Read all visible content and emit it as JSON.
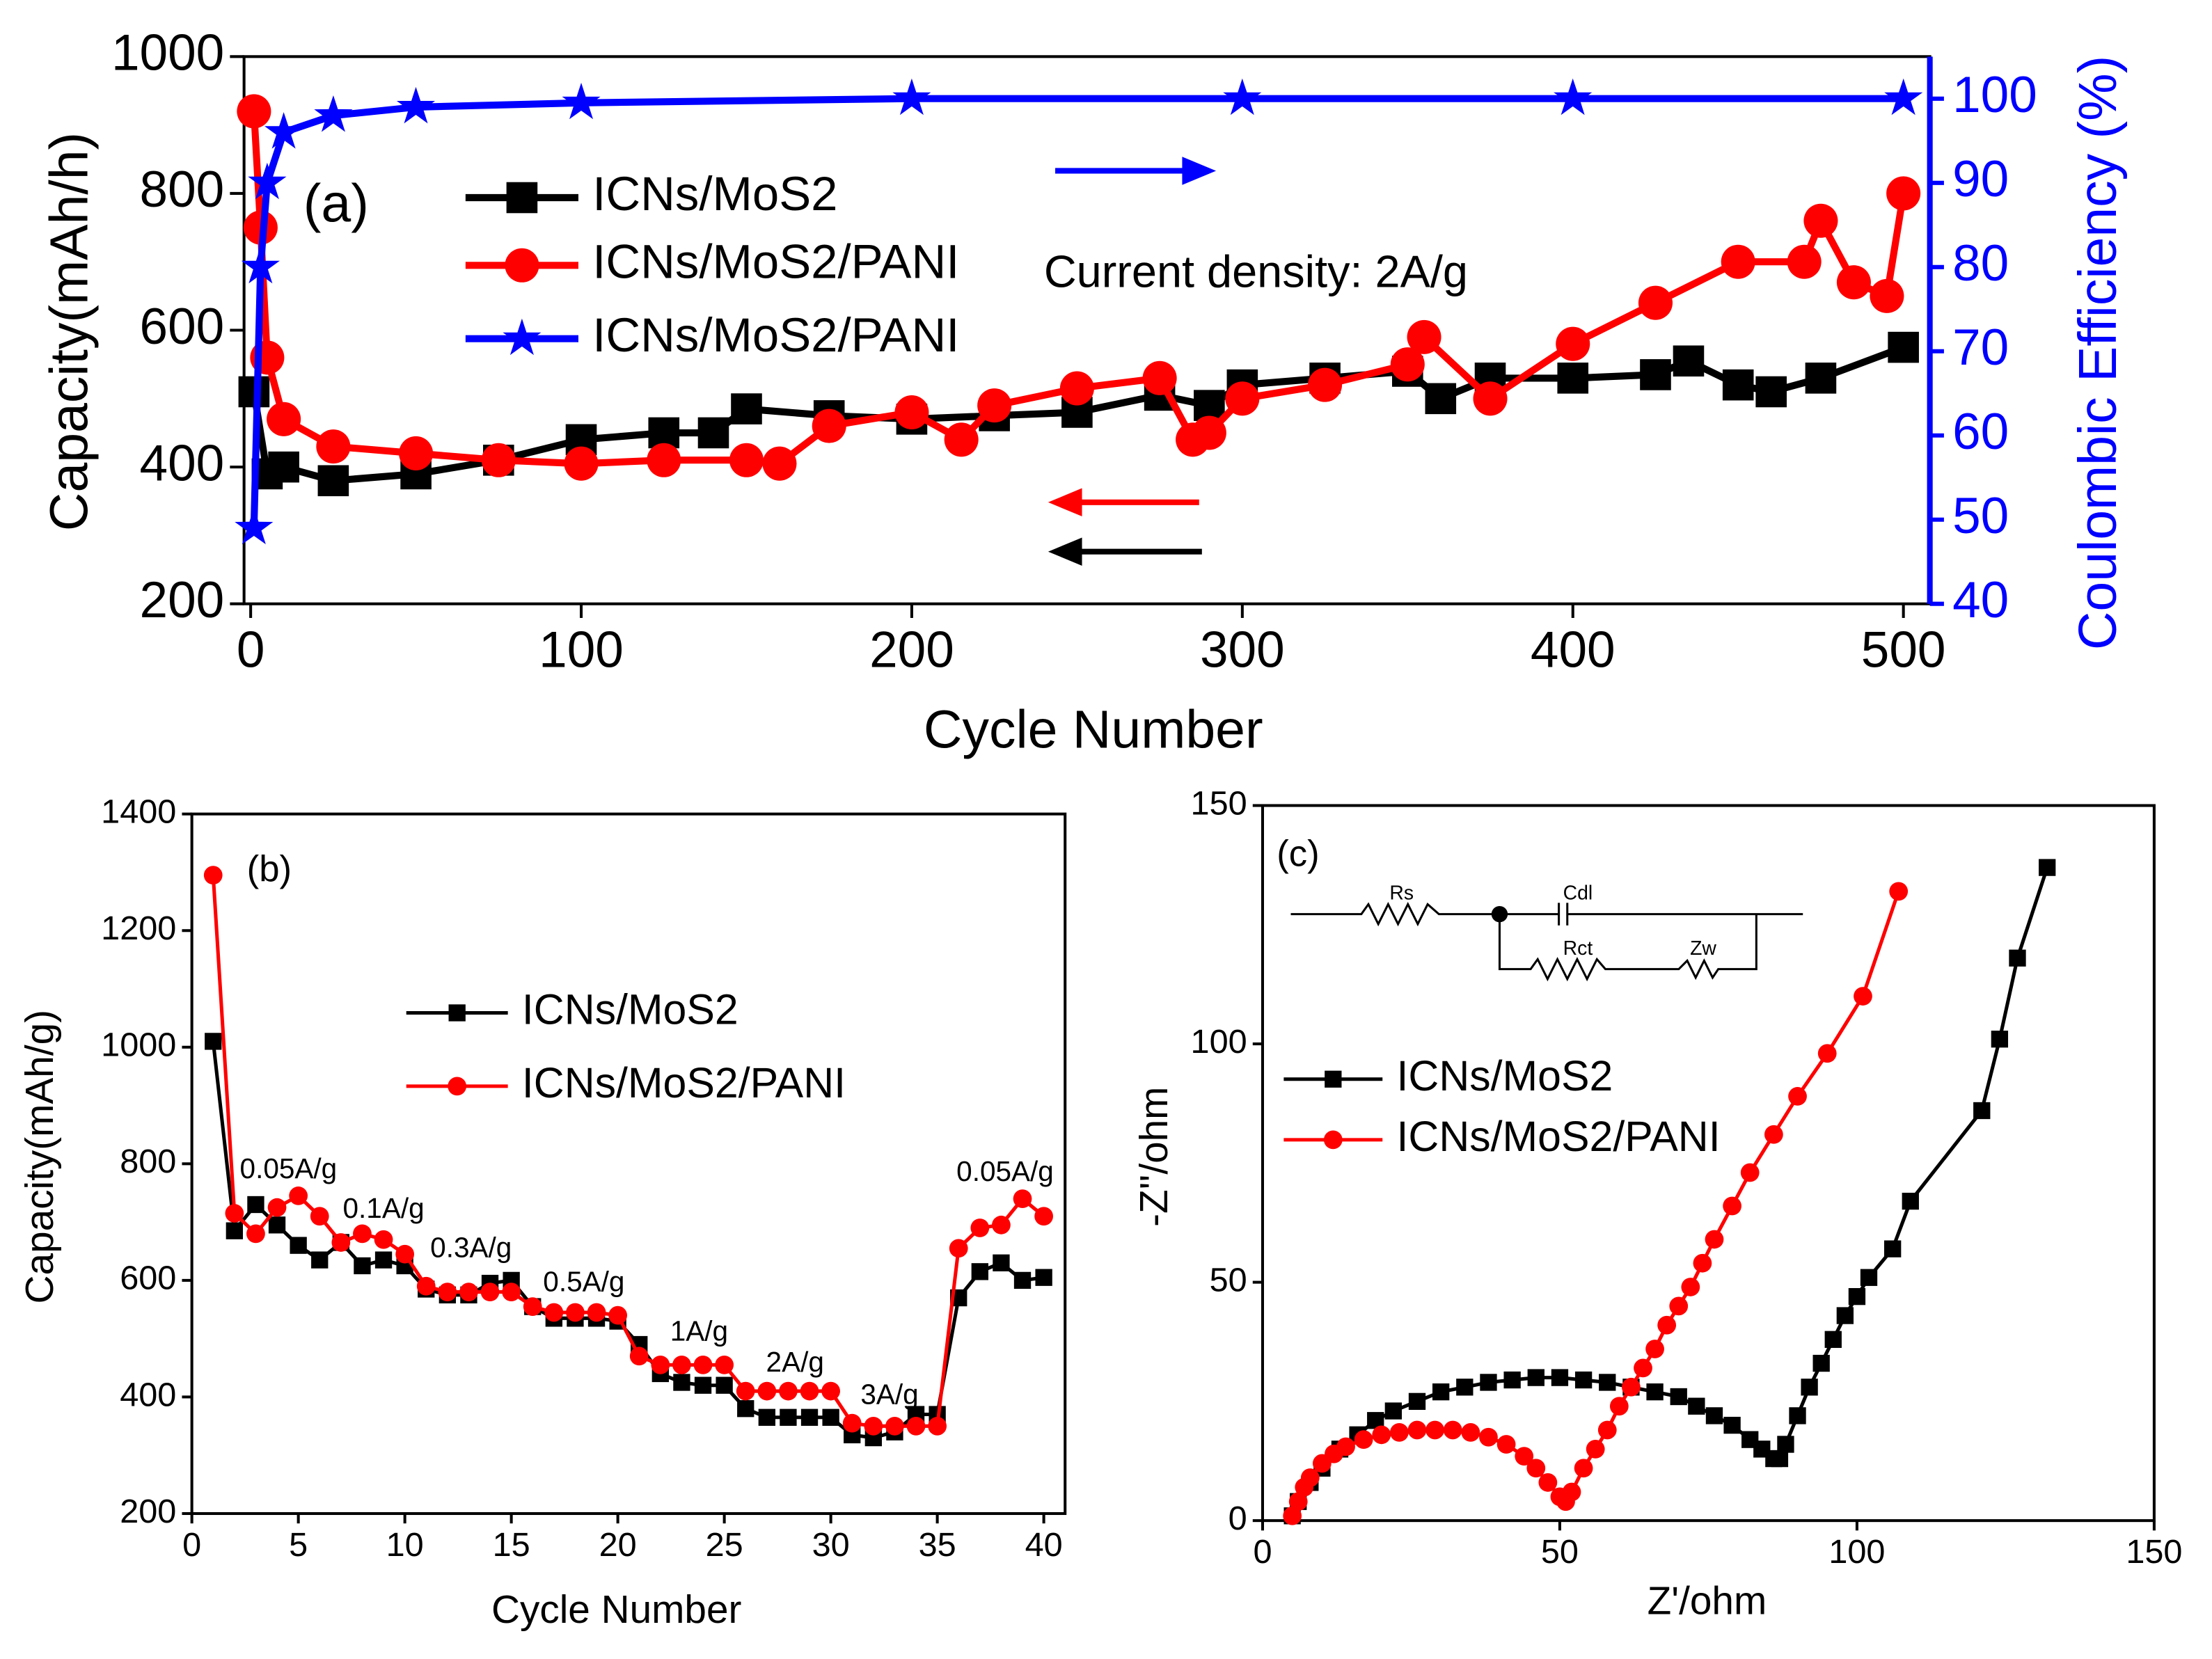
{
  "chart_data": [
    {
      "type": "line",
      "xlabel": "Cycle Number",
      "ylabel": "Capacity(mAh/h)",
      "y2label": "Coulombic Efficiency (%)",
      "xlim": [
        -2,
        508
      ],
      "xticks": [
        0,
        100,
        200,
        300,
        400,
        500
      ],
      "ylim": [
        200,
        1000
      ],
      "yticks": [
        200,
        400,
        600,
        800,
        1000
      ],
      "y2lim": [
        40,
        105
      ],
      "y2ticks": [
        40,
        50,
        60,
        70,
        80,
        90,
        100
      ],
      "annotations": [
        "(a)",
        "Current density: 2A/g"
      ],
      "series": [
        {
          "name": "ICNs/MoS2",
          "color": "#000000",
          "marker": "square",
          "x": [
            1,
            5,
            10,
            25,
            50,
            75,
            100,
            125,
            140,
            150,
            175,
            200,
            225,
            250,
            275,
            290,
            300,
            325,
            350,
            360,
            375,
            400,
            425,
            435,
            450,
            460,
            475,
            500
          ],
          "values": [
            510,
            390,
            400,
            380,
            390,
            410,
            440,
            450,
            450,
            485,
            475,
            470,
            475,
            480,
            505,
            490,
            520,
            530,
            540,
            500,
            530,
            530,
            535,
            555,
            520,
            510,
            530,
            575
          ]
        },
        {
          "name": "ICNs/MoS2/PANI",
          "color": "#ff0000",
          "marker": "circle",
          "x": [
            1,
            3,
            5,
            10,
            25,
            50,
            75,
            100,
            125,
            150,
            160,
            175,
            200,
            215,
            225,
            250,
            275,
            285,
            290,
            300,
            325,
            350,
            355,
            375,
            400,
            425,
            450,
            470,
            475,
            485,
            495,
            500
          ],
          "values": [
            920,
            750,
            560,
            470,
            430,
            420,
            410,
            405,
            410,
            410,
            405,
            460,
            480,
            440,
            490,
            515,
            530,
            440,
            450,
            500,
            520,
            550,
            590,
            500,
            580,
            640,
            700,
            700,
            760,
            670,
            650,
            800
          ]
        },
        {
          "name": "ICNs/MoS2/PANI",
          "color": "#0000ff",
          "marker": "star",
          "axis": "y2",
          "x": [
            1,
            3,
            5,
            10,
            25,
            50,
            100,
            200,
            300,
            400,
            500
          ],
          "values": [
            49,
            80,
            90,
            96,
            98,
            99,
            99.5,
            100,
            100,
            100,
            100
          ]
        }
      ]
    },
    {
      "type": "line",
      "xlabel": "Cycle Number",
      "ylabel": "Capacity(mAh/g)",
      "xlim": [
        0,
        41
      ],
      "xticks": [
        0,
        5,
        10,
        15,
        20,
        25,
        30,
        35,
        40
      ],
      "ylim": [
        200,
        1400
      ],
      "yticks": [
        200,
        400,
        600,
        800,
        1000,
        1200,
        1400
      ],
      "annotations": [
        "(b)",
        "0.05A/g",
        "0.1A/g",
        "0.3A/g",
        "0.5A/g",
        "1A/g",
        "2A/g",
        "3A/g",
        "0.05A/g"
      ],
      "x": [
        1,
        2,
        3,
        4,
        5,
        6,
        7,
        8,
        9,
        10,
        11,
        12,
        13,
        14,
        15,
        16,
        17,
        18,
        19,
        20,
        21,
        22,
        23,
        24,
        25,
        26,
        27,
        28,
        29,
        30,
        31,
        32,
        33,
        34,
        35,
        36,
        37,
        38,
        39,
        40
      ],
      "series": [
        {
          "name": "ICNs/MoS2",
          "color": "#000000",
          "marker": "square",
          "values": [
            1010,
            685,
            730,
            695,
            660,
            635,
            665,
            625,
            635,
            625,
            585,
            575,
            575,
            595,
            600,
            555,
            535,
            535,
            535,
            530,
            490,
            440,
            425,
            420,
            420,
            380,
            365,
            365,
            365,
            365,
            335,
            330,
            340,
            370,
            370,
            570,
            615,
            630,
            600,
            605
          ]
        },
        {
          "name": "ICNs/MoS2/PANI",
          "color": "#ff0000",
          "marker": "circle",
          "values": [
            1295,
            715,
            680,
            725,
            745,
            710,
            665,
            680,
            670,
            645,
            590,
            580,
            580,
            580,
            580,
            555,
            545,
            545,
            545,
            540,
            470,
            455,
            455,
            455,
            455,
            410,
            410,
            410,
            410,
            410,
            355,
            350,
            350,
            350,
            350,
            655,
            690,
            695,
            740,
            710
          ]
        }
      ]
    },
    {
      "type": "line",
      "xlabel": "Z'/ohm",
      "ylabel": "-Z''/ohm",
      "xlim": [
        0,
        150
      ],
      "xticks": [
        0,
        50,
        100,
        150
      ],
      "ylim": [
        0,
        150
      ],
      "yticks": [
        0,
        50,
        100,
        150
      ],
      "annotations": [
        "(c)",
        "Rs",
        "Cdl",
        "Rct",
        "Zw"
      ],
      "series": [
        {
          "name": "ICNs/MoS2",
          "color": "#000000",
          "marker": "square",
          "x": [
            5,
            6,
            8,
            10,
            13,
            16,
            19,
            22,
            26,
            30,
            34,
            38,
            42,
            46,
            50,
            54,
            58,
            62,
            66,
            70,
            73,
            76,
            79,
            82,
            84,
            86,
            87,
            88,
            90,
            92,
            94,
            96,
            98,
            100,
            102,
            106,
            109,
            121,
            124,
            127,
            132
          ],
          "values": [
            1,
            4,
            8,
            11,
            15,
            18,
            21,
            23,
            25,
            27,
            28,
            29,
            29.5,
            30,
            30,
            29.5,
            29,
            28,
            27,
            26,
            24,
            22,
            20,
            17,
            15,
            13,
            13,
            16,
            22,
            28,
            33,
            38,
            43,
            47,
            51,
            57,
            67,
            86,
            101,
            118,
            137
          ]
        },
        {
          "name": "ICNs/MoS2/PANI",
          "color": "#ff0000",
          "marker": "circle",
          "x": [
            5,
            6,
            7,
            8,
            10,
            12,
            14,
            17,
            20,
            23,
            26,
            29,
            32,
            35,
            38,
            41,
            44,
            46,
            48,
            50,
            51,
            52,
            54,
            56,
            58,
            60,
            62,
            64,
            66,
            68,
            70,
            72,
            74,
            76,
            79,
            82,
            86,
            90,
            95,
            101,
            107
          ],
          "values": [
            1,
            4,
            7,
            9,
            12,
            14,
            15.5,
            17,
            18,
            18.5,
            19,
            19,
            19,
            18.5,
            17.5,
            16,
            13.5,
            11,
            8,
            5,
            4,
            6,
            11,
            15,
            19,
            24,
            28,
            32,
            36,
            41,
            45,
            49,
            54,
            59,
            66,
            73,
            81,
            89,
            98,
            110,
            132
          ]
        }
      ]
    }
  ]
}
